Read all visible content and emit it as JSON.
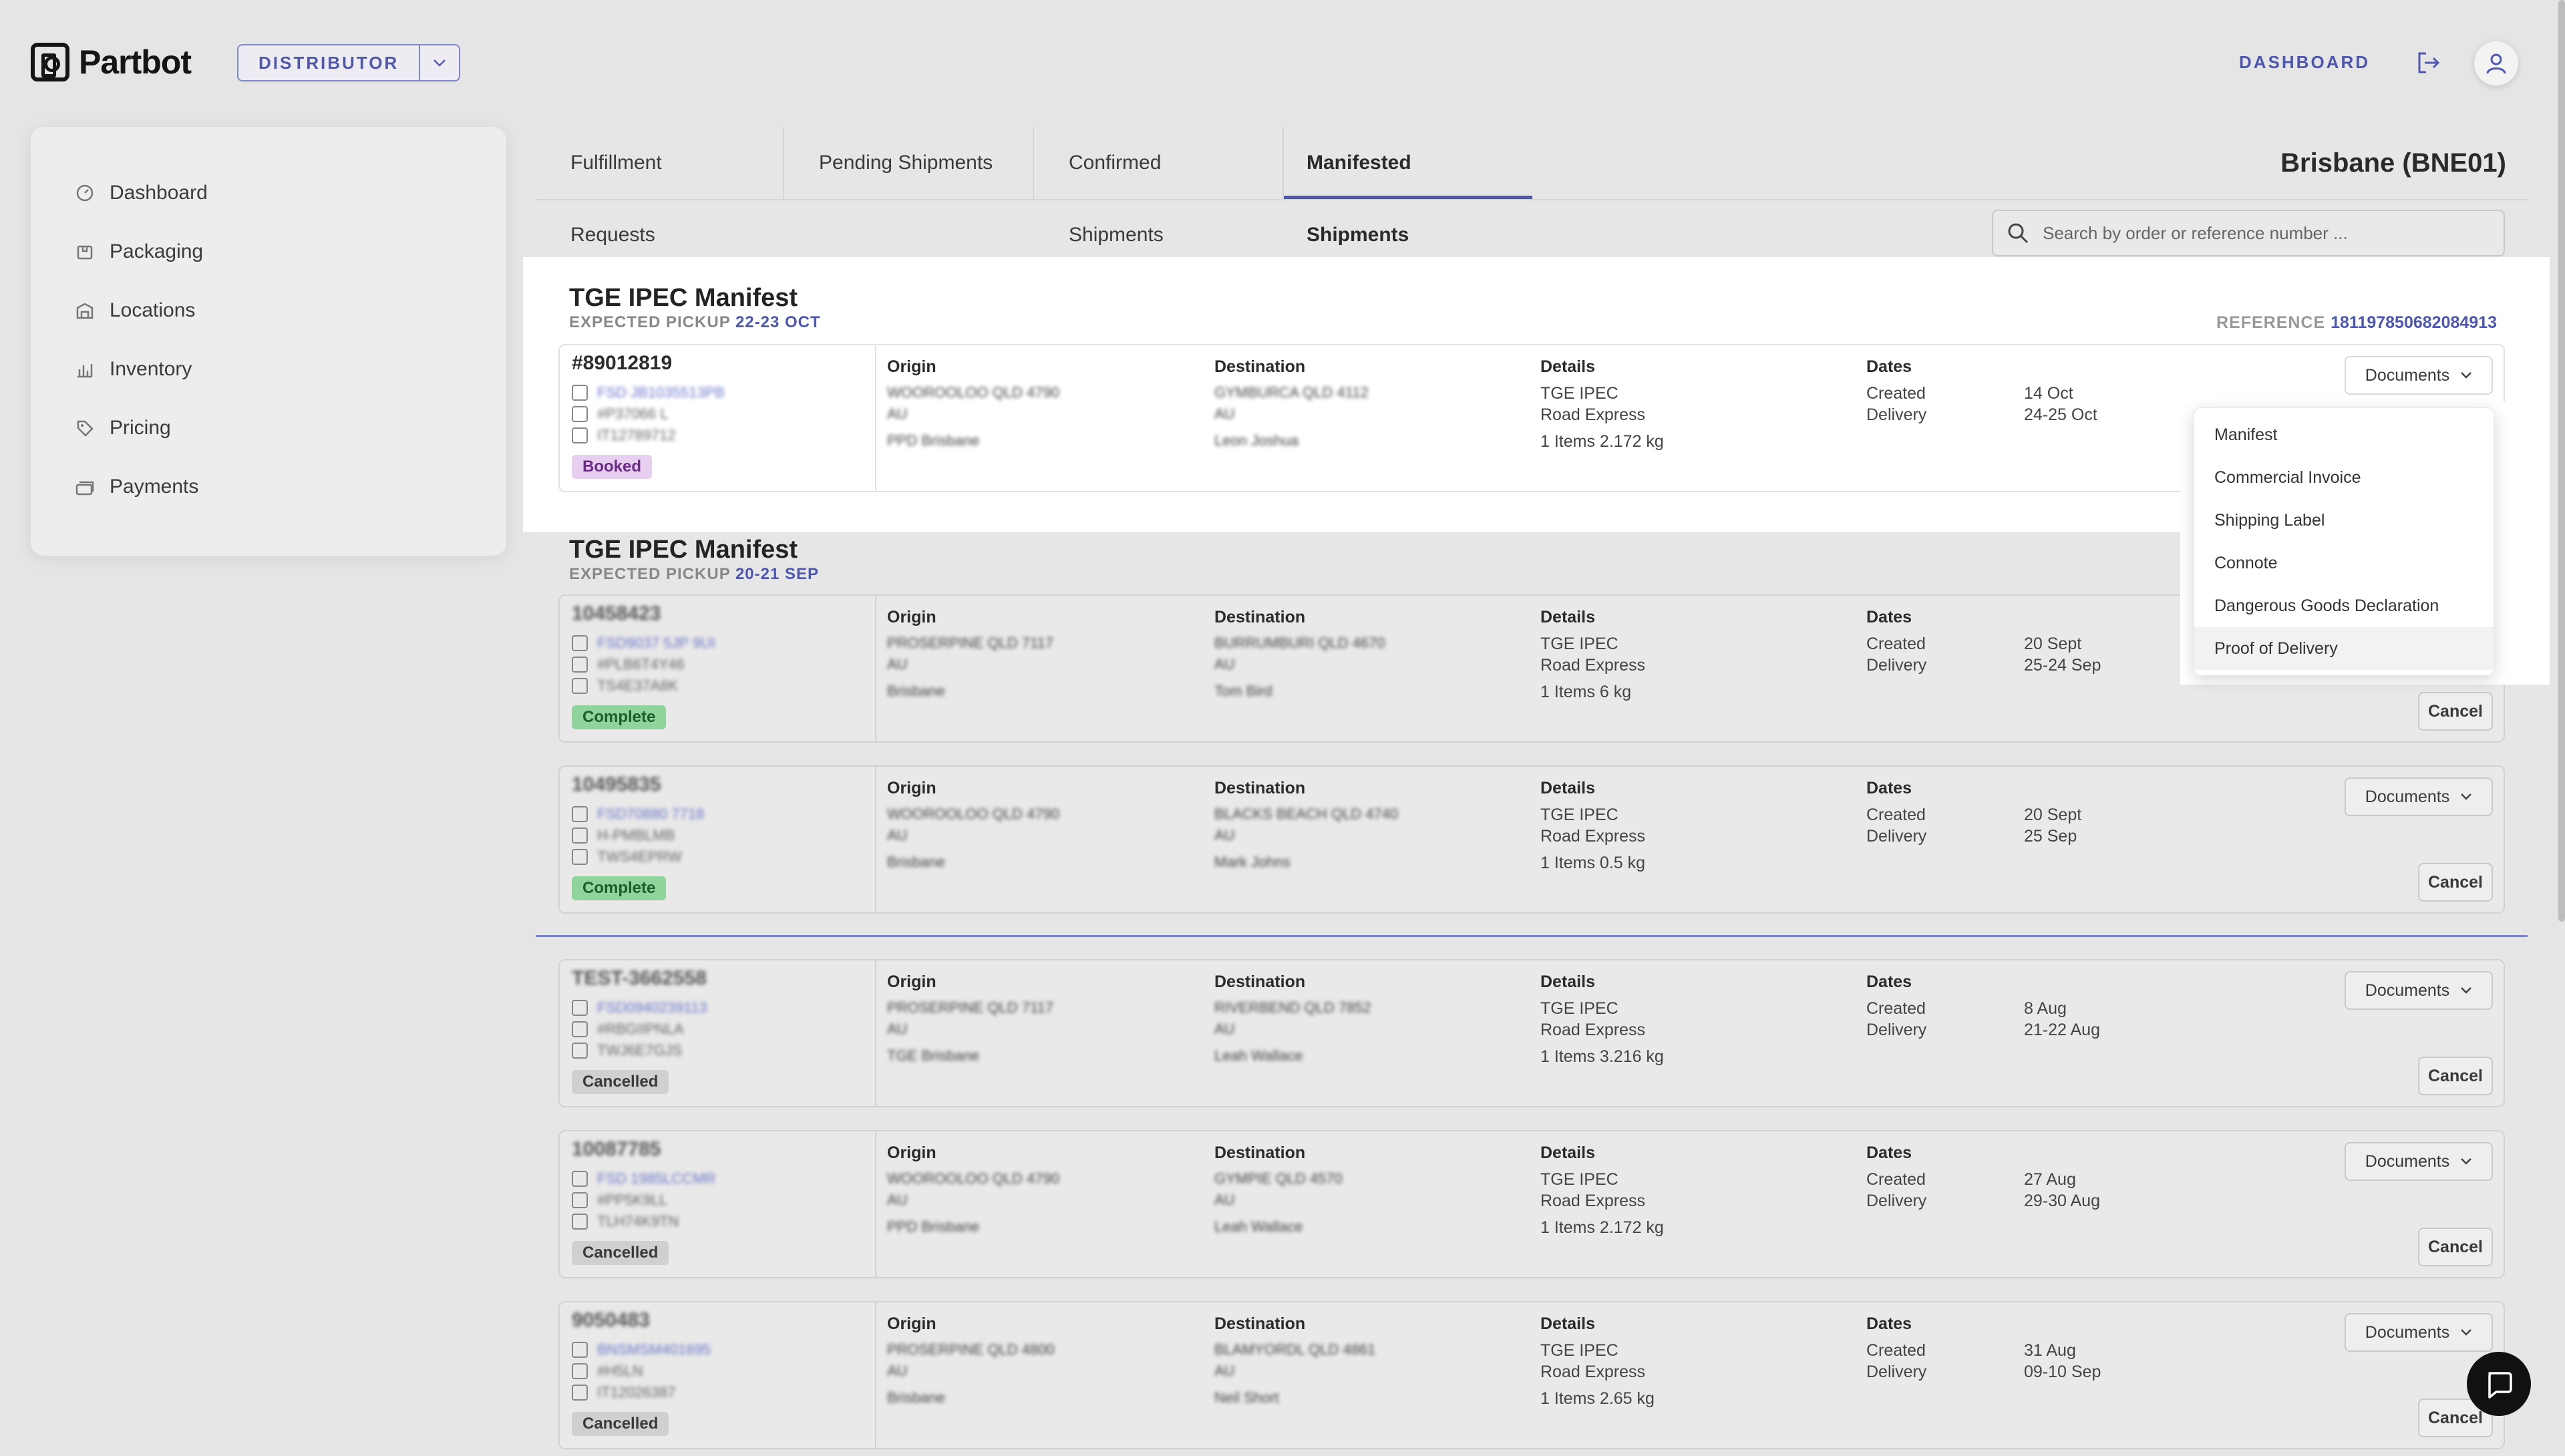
{
  "header": {
    "brand": "Partbot",
    "role": "DISTRIBUTOR",
    "dashboard_link": "DASHBOARD",
    "icons": [
      "logout-icon",
      "user-icon",
      "chevron-down-icon"
    ]
  },
  "sidebar": {
    "items": [
      {
        "label": "Dashboard",
        "icon": "dashboard-icon"
      },
      {
        "label": "Packaging",
        "icon": "package-icon"
      },
      {
        "label": "Locations",
        "icon": "building-icon"
      },
      {
        "label": "Inventory",
        "icon": "inventory-icon"
      },
      {
        "label": "Pricing",
        "icon": "tag-icon"
      },
      {
        "label": "Payments",
        "icon": "payments-icon"
      }
    ]
  },
  "tabs": [
    {
      "label": "Fulfillment Requests"
    },
    {
      "label": "Pending Shipments"
    },
    {
      "label": "Confirmed Shipments"
    },
    {
      "label": "Manifested Shipments",
      "active": true
    }
  ],
  "location": "Brisbane (BNE01)",
  "search": {
    "placeholder": "Search by order or reference number ..."
  },
  "labels": {
    "origin": "Origin",
    "destination": "Destination",
    "details": "Details",
    "dates": "Dates",
    "created": "Created",
    "delivery": "Delivery",
    "documents": "Documents",
    "cancel": "Cancel",
    "expected_pickup": "EXPECTED PICKUP",
    "reference": "REFERENCE"
  },
  "manifests": [
    {
      "title": "TGE IPEC Manifest",
      "pickup": "22-23 OCT",
      "reference": "181197850682084913",
      "shipments": [
        {
          "order": "#89012819",
          "carrier": "TGE IPEC",
          "service": "Road Express",
          "items": "1 Items 2.172 kg",
          "created": "14 Oct",
          "delivery": "24-25 Oct",
          "status": "Booked"
        }
      ]
    },
    {
      "title": "TGE IPEC Manifest",
      "pickup": "20-21 SEP",
      "shipments": [
        {
          "carrier": "TGE IPEC",
          "service": "Road Express",
          "items": "1 Items 6 kg",
          "created": "20 Sept",
          "delivery": "25-24 Sep",
          "status": "Complete"
        },
        {
          "carrier": "TGE IPEC",
          "service": "Road Express",
          "items": "1 Items 0.5 kg",
          "created": "20 Sept",
          "delivery": "25 Sep",
          "status": "Complete"
        }
      ]
    },
    {
      "shipments": [
        {
          "carrier": "TGE IPEC",
          "service": "Road Express",
          "items": "1 Items 3.216 kg",
          "created": "8 Aug",
          "delivery": "21-22 Aug",
          "status": "Cancelled"
        },
        {
          "carrier": "TGE IPEC",
          "service": "Road Express",
          "items": "1 Items 2.172 kg",
          "created": "27 Aug",
          "delivery": "29-30 Aug",
          "status": "Cancelled"
        },
        {
          "carrier": "TGE IPEC",
          "service": "Road Express",
          "items": "1 Items 2.65 kg",
          "created": "31 Aug",
          "delivery": "09-10 Sep",
          "status": "Cancelled"
        }
      ]
    }
  ],
  "documents_menu": {
    "items": [
      "Manifest",
      "Commercial Invoice",
      "Shipping Label",
      "Connote",
      "Dangerous Goods Declaration",
      "Proof of Delivery"
    ],
    "hovered": "Proof of Delivery"
  },
  "colors": {
    "accent": "#4d57b0",
    "booked": "#e7d0ef",
    "complete": "#8fd49a",
    "cancelled": "#d0d0d0"
  }
}
